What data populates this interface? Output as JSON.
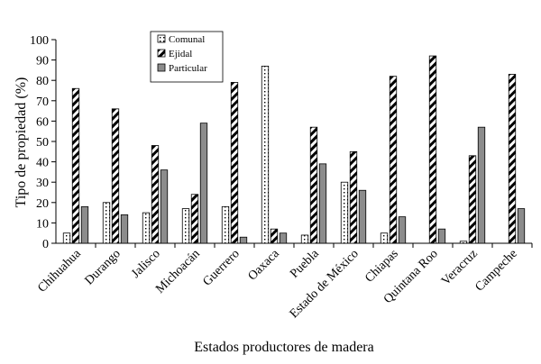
{
  "chart_data": {
    "type": "bar",
    "xlabel": "Estados productores de madera",
    "ylabel": "Tipo de propiedad (%)",
    "ylim": [
      0,
      100
    ],
    "yticks": [
      0,
      10,
      20,
      30,
      40,
      50,
      60,
      70,
      80,
      90,
      100
    ],
    "grid": false,
    "legend": "top-left",
    "categories": [
      "Chihuahua",
      "Durango",
      "Jalisco",
      "Michoacán",
      "Guerrero",
      "Oaxaca",
      "Puebla",
      "Estado de México",
      "Chiapas",
      "Quintana Roo",
      "Veracruz",
      "Campeche"
    ],
    "series": [
      {
        "name": "Comunal",
        "pattern": "dotted",
        "values": [
          5,
          20,
          15,
          17,
          18,
          87,
          4,
          30,
          5,
          0,
          1,
          0
        ]
      },
      {
        "name": "Ejidal",
        "pattern": "diagonal-hatch",
        "values": [
          76,
          66,
          48,
          24,
          79,
          7,
          57,
          45,
          82,
          92,
          43,
          83
        ]
      },
      {
        "name": "Particular",
        "pattern": "solid-gray",
        "color": "#8c8c8c",
        "values": [
          18,
          14,
          36,
          59,
          3,
          5,
          39,
          26,
          13,
          7,
          57,
          17
        ]
      }
    ]
  }
}
